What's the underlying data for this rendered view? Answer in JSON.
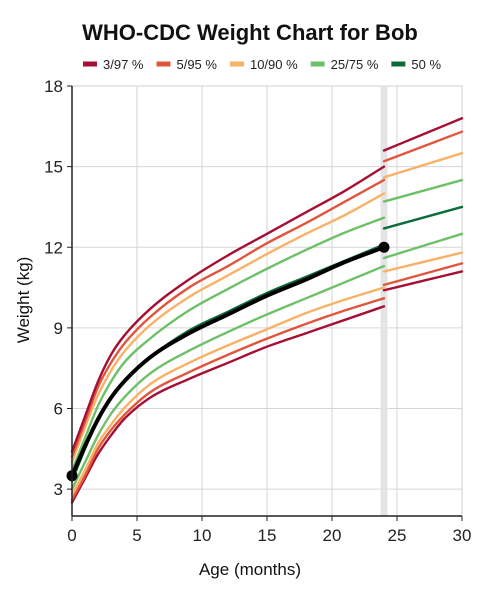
{
  "chart_data": {
    "type": "line",
    "title": "WHO-CDC Weight Chart for Bob",
    "xlabel": "Age (months)",
    "ylabel": "Weight (kg)",
    "xlim": [
      0,
      30
    ],
    "ylim": [
      2,
      18
    ],
    "xticks": [
      "0",
      "5",
      "10",
      "15",
      "20",
      "25",
      "30"
    ],
    "yticks": [
      "3",
      "6",
      "9",
      "12",
      "15",
      "18"
    ],
    "grid": true,
    "legend_position": "top",
    "transition_marker_x": 24,
    "legend": [
      {
        "label": "3/97 %",
        "color": "#a50f33"
      },
      {
        "label": "5/95 %",
        "color": "#e0553d"
      },
      {
        "label": "10/90 %",
        "color": "#f9b166"
      },
      {
        "label": "25/75 %",
        "color": "#6dc068"
      },
      {
        "label": "50 %",
        "color": "#0b6b3a"
      }
    ],
    "percentile_curves": [
      {
        "group": "3/97 %",
        "color": "#a50f33",
        "who": [
          [
            0,
            2.5
          ],
          [
            1,
            3.4
          ],
          [
            2,
            4.3
          ],
          [
            3,
            5.0
          ],
          [
            4,
            5.6
          ],
          [
            6,
            6.4
          ],
          [
            9,
            7.1
          ],
          [
            12,
            7.7
          ],
          [
            15,
            8.3
          ],
          [
            18,
            8.8
          ],
          [
            21,
            9.3
          ],
          [
            24,
            9.8
          ]
        ],
        "cdc": [
          [
            24,
            10.4
          ],
          [
            27,
            10.75
          ],
          [
            30,
            11.1
          ]
        ]
      },
      {
        "group": "5/95 %",
        "color": "#e0553d",
        "who": [
          [
            0,
            2.6
          ],
          [
            1,
            3.5
          ],
          [
            2,
            4.5
          ],
          [
            3,
            5.2
          ],
          [
            4,
            5.75
          ],
          [
            6,
            6.6
          ],
          [
            9,
            7.35
          ],
          [
            12,
            8.0
          ],
          [
            15,
            8.6
          ],
          [
            18,
            9.15
          ],
          [
            21,
            9.65
          ],
          [
            24,
            10.1
          ]
        ],
        "cdc": [
          [
            24,
            10.6
          ],
          [
            27,
            11.0
          ],
          [
            30,
            11.4
          ]
        ]
      },
      {
        "group": "10/90 %",
        "color": "#f9b166",
        "who": [
          [
            0,
            2.8
          ],
          [
            1,
            3.7
          ],
          [
            2,
            4.7
          ],
          [
            3,
            5.4
          ],
          [
            4,
            6.0
          ],
          [
            6,
            6.9
          ],
          [
            9,
            7.7
          ],
          [
            12,
            8.35
          ],
          [
            15,
            8.95
          ],
          [
            18,
            9.55
          ],
          [
            21,
            10.05
          ],
          [
            24,
            10.5
          ]
        ],
        "cdc": [
          [
            24,
            11.1
          ],
          [
            27,
            11.45
          ],
          [
            30,
            11.8
          ]
        ]
      },
      {
        "group": "25/75 %",
        "color": "#6dc068",
        "who": [
          [
            0,
            3.0
          ],
          [
            1,
            4.0
          ],
          [
            2,
            5.0
          ],
          [
            3,
            5.8
          ],
          [
            4,
            6.4
          ],
          [
            6,
            7.3
          ],
          [
            9,
            8.15
          ],
          [
            12,
            8.85
          ],
          [
            15,
            9.5
          ],
          [
            18,
            10.1
          ],
          [
            21,
            10.7
          ],
          [
            24,
            11.3
          ]
        ],
        "cdc": [
          [
            24,
            11.6
          ],
          [
            27,
            12.05
          ],
          [
            30,
            12.5
          ]
        ]
      },
      {
        "group": "50 %",
        "color": "#0b6b3a",
        "who": [
          [
            0,
            3.3
          ],
          [
            1,
            4.5
          ],
          [
            2,
            5.6
          ],
          [
            3,
            6.4
          ],
          [
            4,
            7.0
          ],
          [
            6,
            7.9
          ],
          [
            9,
            8.9
          ],
          [
            12,
            9.6
          ],
          [
            15,
            10.3
          ],
          [
            18,
            10.9
          ],
          [
            21,
            11.5
          ],
          [
            24,
            12.1
          ]
        ],
        "cdc": [
          [
            24,
            12.7
          ],
          [
            27,
            13.1
          ],
          [
            30,
            13.5
          ]
        ]
      },
      {
        "group": "25/75 %",
        "color": "#6dc068",
        "who": [
          [
            0,
            3.7
          ],
          [
            1,
            4.9
          ],
          [
            2,
            6.1
          ],
          [
            3,
            7.0
          ],
          [
            4,
            7.7
          ],
          [
            6,
            8.6
          ],
          [
            9,
            9.65
          ],
          [
            12,
            10.45
          ],
          [
            15,
            11.2
          ],
          [
            18,
            11.9
          ],
          [
            21,
            12.55
          ],
          [
            24,
            13.1
          ]
        ],
        "cdc": [
          [
            24,
            13.7
          ],
          [
            27,
            14.1
          ],
          [
            30,
            14.5
          ]
        ]
      },
      {
        "group": "10/90 %",
        "color": "#f9b166",
        "who": [
          [
            0,
            4.0
          ],
          [
            1,
            5.3
          ],
          [
            2,
            6.5
          ],
          [
            3,
            7.4
          ],
          [
            4,
            8.1
          ],
          [
            6,
            9.1
          ],
          [
            9,
            10.15
          ],
          [
            12,
            10.95
          ],
          [
            15,
            11.75
          ],
          [
            18,
            12.5
          ],
          [
            21,
            13.2
          ],
          [
            24,
            14.0
          ]
        ],
        "cdc": [
          [
            24,
            14.6
          ],
          [
            27,
            15.05
          ],
          [
            30,
            15.5
          ]
        ]
      },
      {
        "group": "5/95 %",
        "color": "#e0553d",
        "who": [
          [
            0,
            4.2
          ],
          [
            1,
            5.5
          ],
          [
            2,
            6.8
          ],
          [
            3,
            7.7
          ],
          [
            4,
            8.4
          ],
          [
            6,
            9.4
          ],
          [
            9,
            10.5
          ],
          [
            12,
            11.3
          ],
          [
            15,
            12.15
          ],
          [
            18,
            12.9
          ],
          [
            21,
            13.7
          ],
          [
            24,
            14.5
          ]
        ],
        "cdc": [
          [
            24,
            15.2
          ],
          [
            27,
            15.75
          ],
          [
            30,
            16.3
          ]
        ]
      },
      {
        "group": "3/97 %",
        "color": "#a50f33",
        "who": [
          [
            0,
            4.4
          ],
          [
            1,
            5.7
          ],
          [
            2,
            7.0
          ],
          [
            3,
            8.0
          ],
          [
            4,
            8.7
          ],
          [
            6,
            9.7
          ],
          [
            9,
            10.8
          ],
          [
            12,
            11.7
          ],
          [
            15,
            12.5
          ],
          [
            18,
            13.3
          ],
          [
            21,
            14.1
          ],
          [
            24,
            15.0
          ]
        ],
        "cdc": [
          [
            24,
            15.6
          ],
          [
            27,
            16.2
          ],
          [
            30,
            16.8
          ]
        ]
      }
    ],
    "patient_series": {
      "color": "#000000",
      "points": [
        [
          0,
          3.5
        ],
        [
          1,
          4.6
        ],
        [
          2,
          5.6
        ],
        [
          3,
          6.4
        ],
        [
          4,
          7.0
        ],
        [
          6,
          7.9
        ],
        [
          9,
          8.8
        ],
        [
          12,
          9.5
        ],
        [
          15,
          10.2
        ],
        [
          18,
          10.8
        ],
        [
          21,
          11.45
        ],
        [
          24,
          12.0
        ]
      ],
      "markers": [
        [
          0,
          3.5
        ],
        [
          24,
          12.0
        ]
      ]
    }
  }
}
